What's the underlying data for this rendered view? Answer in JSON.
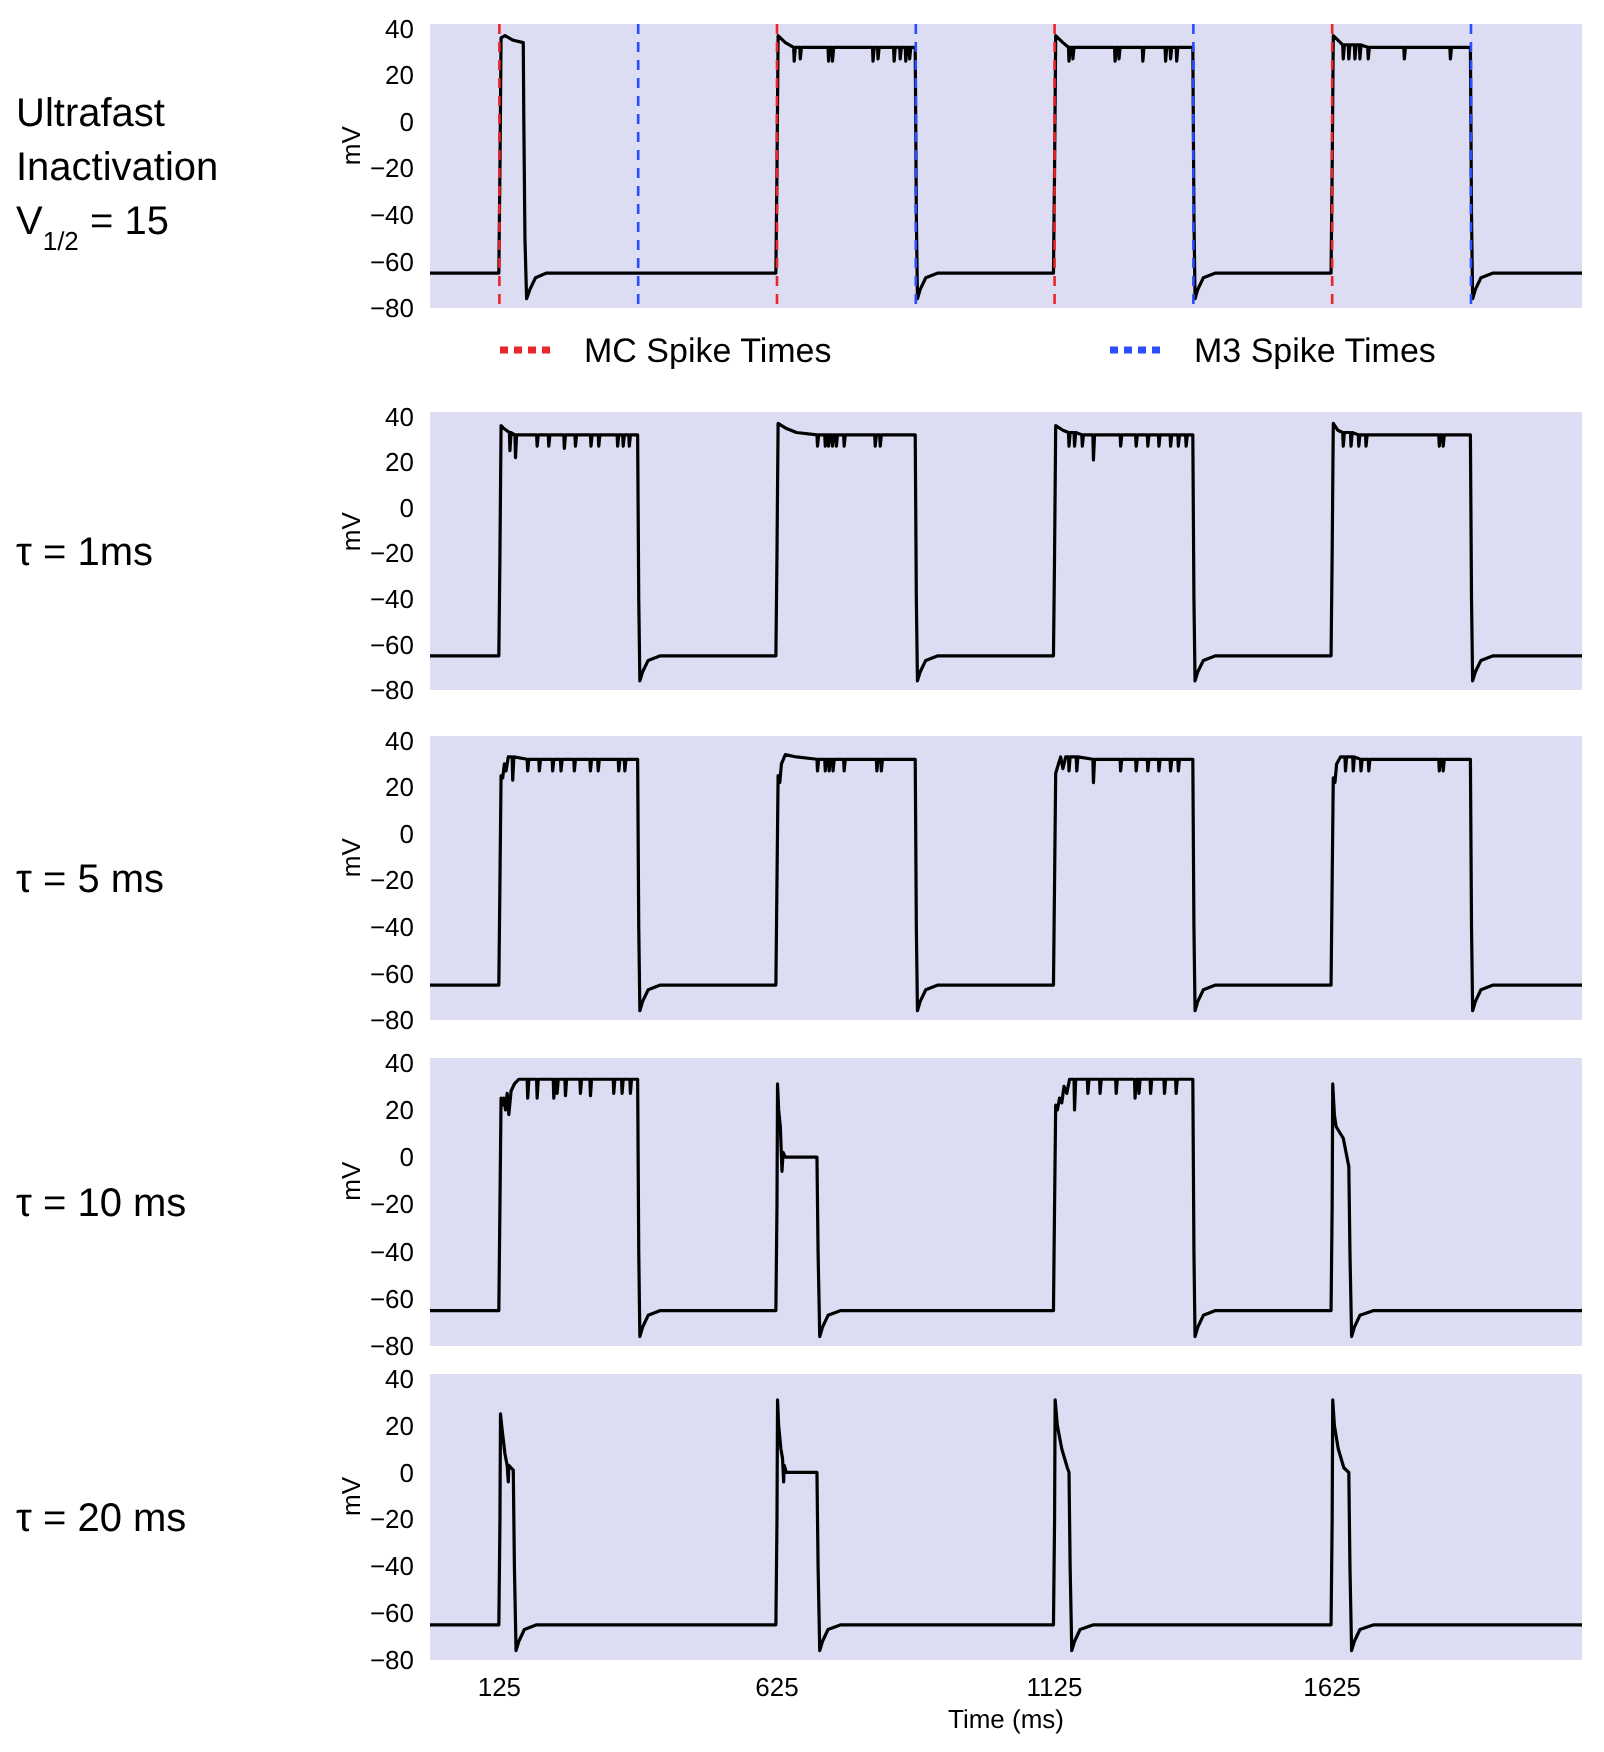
{
  "chart_data": [
    {
      "type": "line",
      "title": "Ultrafast Inactivation V$_{1/2}$ = 15",
      "ylabel": "mV",
      "xlim": [
        0,
        2075
      ],
      "ylim": [
        -80,
        42
      ],
      "yticks": [
        -80,
        -60,
        -40,
        -20,
        0,
        20,
        40
      ],
      "tick_labels": "y",
      "legend": "bottom",
      "grid": false,
      "ref_lines": [
        {
          "axis": "x",
          "value": 125,
          "label": "MC Spike Times",
          "color": "#e8262b",
          "line_style": "dashed"
        },
        {
          "axis": "x",
          "value": 625,
          "color": "#e8262b",
          "line_style": "dashed"
        },
        {
          "axis": "x",
          "value": 1125,
          "color": "#e8262b",
          "line_style": "dashed"
        },
        {
          "axis": "x",
          "value": 1625,
          "color": "#e8262b",
          "line_style": "dashed"
        },
        {
          "axis": "x",
          "value": 375,
          "label": "M3 Spike Times",
          "color": "#2a4dff",
          "line_style": "dashed"
        },
        {
          "axis": "x",
          "value": 875,
          "color": "#2a4dff",
          "line_style": "dashed"
        },
        {
          "axis": "x",
          "value": 1375,
          "color": "#2a4dff",
          "line_style": "dashed"
        },
        {
          "axis": "x",
          "value": 1875,
          "color": "#2a4dff",
          "line_style": "dashed"
        }
      ],
      "series": [
        {
          "color": "#000000",
          "x": [
            0,
            124,
            126,
            128,
            135,
            150,
            168,
            169,
            171,
            174,
            180,
            190,
            210,
            623,
            625,
            627,
            640,
            655,
            656,
            658,
            666,
            667,
            669,
            717,
            718,
            720,
            724,
            725,
            727,
            797,
            798,
            800,
            806,
            807,
            809,
            835,
            836,
            838,
            846,
            847,
            849,
            856,
            857,
            859,
            863,
            864,
            866,
            874,
            876,
            878,
            883,
            893,
            915,
            1123,
            1125,
            1127,
            1140,
            1150,
            1151,
            1153,
            1157,
            1158,
            1160,
            1233,
            1234,
            1236,
            1240,
            1241,
            1243,
            1283,
            1284,
            1286,
            1324,
            1325,
            1327,
            1333,
            1334,
            1336,
            1344,
            1345,
            1347,
            1374,
            1376,
            1378,
            1383,
            1393,
            1415,
            1623,
            1625,
            1627,
            1640,
            1644,
            1645,
            1647,
            1654,
            1655,
            1657,
            1665,
            1666,
            1668,
            1674,
            1675,
            1677,
            1689,
            1690,
            1692,
            1754,
            1755,
            1757,
            1837,
            1838,
            1840,
            1874,
            1876,
            1878,
            1883,
            1893,
            1915,
            2075
          ],
          "values": [
            -65,
            -65,
            -20,
            36,
            37,
            35,
            34,
            0,
            -50,
            -76,
            -72,
            -67,
            -65,
            -65,
            -20,
            37,
            34,
            32,
            26,
            32,
            32,
            27,
            32,
            32,
            26,
            32,
            32,
            26,
            32,
            32,
            26,
            32,
            32,
            27,
            32,
            32,
            26,
            32,
            32,
            27,
            32,
            32,
            26,
            32,
            32,
            27,
            32,
            32,
            -40,
            -76,
            -72,
            -67,
            -65,
            -65,
            -20,
            37,
            34,
            32,
            26,
            32,
            32,
            27,
            32,
            32,
            26,
            32,
            32,
            27,
            32,
            32,
            26,
            32,
            32,
            26,
            32,
            32,
            27,
            32,
            32,
            26,
            32,
            32,
            -40,
            -76,
            -72,
            -67,
            -65,
            -65,
            -20,
            37,
            34,
            33,
            27,
            33,
            33,
            27,
            33,
            33,
            27,
            33,
            33,
            27,
            33,
            32,
            27,
            32,
            32,
            27,
            32,
            32,
            27,
            32,
            32,
            -40,
            -76,
            -72,
            -67,
            -65,
            -65
          ]
        }
      ]
    },
    {
      "type": "line",
      "title": "τ = 1ms",
      "ylabel": "mV",
      "xlim": [
        0,
        2075
      ],
      "ylim": [
        -80,
        42
      ],
      "yticks": [
        -80,
        -60,
        -40,
        -20,
        0,
        20,
        40
      ],
      "tick_labels": "y",
      "grid": false,
      "series": [
        {
          "color": "#000000",
          "x": [
            0,
            124,
            126,
            128,
            132,
            143,
            144,
            146,
            153,
            154,
            156,
            192,
            193,
            195,
            213,
            214,
            216,
            241,
            242,
            244,
            261,
            262,
            264,
            289,
            290,
            292,
            303,
            304,
            306,
            337,
            338,
            340,
            347,
            348,
            350,
            358,
            359,
            361,
            374,
            376,
            378,
            383,
            393,
            415,
            623,
            625,
            627,
            640,
            660,
            697,
            698,
            700,
            711,
            712,
            714,
            717,
            718,
            720,
            724,
            725,
            727,
            731,
            732,
            734,
            745,
            746,
            748,
            801,
            802,
            804,
            810,
            811,
            813,
            874,
            876,
            878,
            883,
            893,
            915,
            1123,
            1125,
            1127,
            1140,
            1150,
            1151,
            1153,
            1160,
            1161,
            1163,
            1174,
            1175,
            1177,
            1194,
            1195,
            1197,
            1243,
            1244,
            1246,
            1271,
            1272,
            1274,
            1292,
            1293,
            1295,
            1312,
            1313,
            1315,
            1333,
            1334,
            1336,
            1347,
            1348,
            1350,
            1361,
            1362,
            1364,
            1374,
            1376,
            1378,
            1383,
            1393,
            1415,
            1623,
            1625,
            1627,
            1635,
            1644,
            1645,
            1647,
            1658,
            1659,
            1661,
            1672,
            1673,
            1675,
            1685,
            1686,
            1688,
            1817,
            1818,
            1820,
            1824,
            1825,
            1827,
            1874,
            1876,
            1878,
            1883,
            1893,
            1915,
            2075
          ],
          "values": [
            -65,
            -65,
            -20,
            36,
            35,
            33,
            25,
            33,
            32,
            22,
            32,
            32,
            27,
            32,
            32,
            27,
            32,
            32,
            26,
            32,
            32,
            27,
            32,
            32,
            27,
            32,
            32,
            27,
            32,
            32,
            27,
            32,
            32,
            27,
            32,
            32,
            27,
            32,
            32,
            -40,
            -76,
            -72,
            -67,
            -65,
            -65,
            -20,
            37,
            35,
            33,
            32,
            27,
            32,
            32,
            27,
            32,
            32,
            27,
            32,
            32,
            27,
            32,
            32,
            27,
            32,
            32,
            27,
            32,
            32,
            27,
            32,
            32,
            27,
            32,
            32,
            -40,
            -76,
            -72,
            -67,
            -65,
            -65,
            -20,
            36,
            34,
            33,
            27,
            33,
            33,
            27,
            33,
            32,
            27,
            32,
            32,
            21,
            32,
            32,
            27,
            32,
            32,
            27,
            32,
            32,
            27,
            32,
            32,
            27,
            32,
            32,
            27,
            32,
            32,
            27,
            32,
            32,
            27,
            32,
            32,
            -40,
            -76,
            -72,
            -67,
            -65,
            -65,
            -20,
            37,
            34,
            33,
            27,
            33,
            33,
            27,
            33,
            32,
            27,
            32,
            32,
            27,
            32,
            32,
            27,
            32,
            32,
            27,
            32,
            32,
            -40,
            -76,
            -72,
            -67,
            -65,
            -65
          ]
        }
      ]
    },
    {
      "type": "line",
      "title": "τ = 5 ms",
      "ylabel": "mV",
      "xlim": [
        0,
        2075
      ],
      "ylim": [
        -80,
        42
      ],
      "yticks": [
        -80,
        -60,
        -40,
        -20,
        0,
        20,
        40
      ],
      "tick_labels": "y",
      "grid": false,
      "series": [
        {
          "color": "#000000",
          "x": [
            0,
            124,
            126,
            128,
            131,
            134,
            137,
            141,
            145,
            148,
            149,
            151,
            175,
            176,
            178,
            196,
            197,
            199,
            220,
            221,
            223,
            235,
            236,
            238,
            259,
            260,
            262,
            288,
            289,
            291,
            302,
            303,
            305,
            339,
            340,
            342,
            350,
            351,
            353,
            374,
            376,
            378,
            383,
            393,
            415,
            623,
            625,
            627,
            630,
            633,
            640,
            660,
            697,
            698,
            700,
            711,
            712,
            714,
            718,
            719,
            721,
            725,
            726,
            728,
            745,
            746,
            748,
            804,
            805,
            807,
            812,
            813,
            815,
            874,
            876,
            878,
            883,
            893,
            915,
            1123,
            1125,
            1127,
            1132,
            1136,
            1140,
            1145,
            1150,
            1151,
            1153,
            1164,
            1165,
            1167,
            1194,
            1195,
            1197,
            1243,
            1244,
            1246,
            1271,
            1272,
            1274,
            1292,
            1293,
            1295,
            1312,
            1313,
            1315,
            1333,
            1334,
            1336,
            1347,
            1348,
            1350,
            1374,
            1376,
            1378,
            1383,
            1393,
            1415,
            1623,
            1625,
            1627,
            1630,
            1633,
            1640,
            1648,
            1649,
            1651,
            1662,
            1663,
            1665,
            1676,
            1677,
            1679,
            1690,
            1691,
            1693,
            1817,
            1818,
            1820,
            1824,
            1825,
            1827,
            1874,
            1876,
            1878,
            1883,
            1893,
            1915,
            2075
          ],
          "values": [
            -65,
            -65,
            -20,
            25,
            24,
            30,
            27,
            33,
            33,
            33,
            23,
            33,
            32,
            27,
            32,
            32,
            27,
            32,
            32,
            27,
            32,
            32,
            27,
            32,
            32,
            27,
            32,
            32,
            27,
            32,
            32,
            27,
            32,
            32,
            27,
            32,
            32,
            27,
            32,
            32,
            -40,
            -76,
            -72,
            -67,
            -65,
            -65,
            -20,
            25,
            22,
            30,
            34,
            33,
            32,
            27,
            32,
            32,
            27,
            32,
            32,
            27,
            32,
            32,
            27,
            32,
            32,
            27,
            32,
            32,
            27,
            32,
            32,
            27,
            32,
            32,
            -40,
            -76,
            -72,
            -67,
            -65,
            -65,
            -20,
            26,
            30,
            33,
            28,
            33,
            33,
            27,
            33,
            33,
            27,
            33,
            32,
            22,
            32,
            32,
            27,
            32,
            32,
            27,
            32,
            32,
            27,
            32,
            32,
            27,
            32,
            32,
            27,
            32,
            32,
            27,
            32,
            32,
            -40,
            -76,
            -72,
            -67,
            -65,
            -65,
            -20,
            24,
            22,
            30,
            33,
            33,
            27,
            33,
            33,
            27,
            33,
            32,
            27,
            32,
            32,
            27,
            32,
            32,
            27,
            32,
            32,
            27,
            32,
            32,
            -40,
            -76,
            -72,
            -67,
            -65,
            -65
          ]
        }
      ]
    },
    {
      "type": "line",
      "title": "τ = 10 ms",
      "ylabel": "mV",
      "xlim": [
        0,
        2075
      ],
      "ylim": [
        -80,
        42
      ],
      "yticks": [
        -80,
        -60,
        -40,
        -20,
        0,
        20,
        40
      ],
      "tick_labels": "y",
      "grid": false,
      "series": [
        {
          "color": "#000000",
          "x": [
            0,
            124,
            126,
            128,
            130,
            133,
            136,
            139,
            142,
            146,
            152,
            160,
            175,
            176,
            178,
            192,
            193,
            195,
            222,
            223,
            225,
            228,
            229,
            231,
            243,
            244,
            246,
            270,
            271,
            273,
            288,
            289,
            291,
            330,
            331,
            333,
            345,
            346,
            348,
            360,
            361,
            363,
            374,
            376,
            378,
            383,
            393,
            415,
            623,
            625,
            626,
            628,
            631,
            634,
            636,
            640,
            697,
            699,
            702,
            707,
            717,
            740,
            1123,
            1125,
            1127,
            1130,
            1134,
            1138,
            1142,
            1147,
            1152,
            1160,
            1161,
            1163,
            1184,
            1185,
            1187,
            1206,
            1207,
            1209,
            1235,
            1236,
            1238,
            1269,
            1270,
            1272,
            1276,
            1277,
            1279,
            1297,
            1298,
            1300,
            1322,
            1323,
            1325,
            1343,
            1344,
            1346,
            1374,
            1376,
            1378,
            1383,
            1393,
            1415,
            1623,
            1625,
            1626,
            1629,
            1632,
            1645,
            1655,
            1657,
            1660,
            1665,
            1675,
            1700,
            2075
          ],
          "values": [
            -65,
            -65,
            -20,
            25,
            22,
            25,
            20,
            27,
            18,
            28,
            31,
            33,
            33,
            25,
            33,
            33,
            25,
            33,
            33,
            25,
            33,
            33,
            27,
            33,
            33,
            26,
            33,
            33,
            27,
            33,
            33,
            26,
            33,
            33,
            27,
            33,
            33,
            27,
            33,
            33,
            27,
            33,
            33,
            -40,
            -76,
            -72,
            -67,
            -65,
            -65,
            -20,
            31,
            20,
            13,
            -6,
            2,
            0,
            0,
            -40,
            -76,
            -72,
            -67,
            -65,
            -65,
            -20,
            22,
            20,
            25,
            23,
            30,
            27,
            33,
            33,
            20,
            33,
            33,
            27,
            33,
            33,
            27,
            33,
            33,
            27,
            33,
            33,
            25,
            33,
            33,
            27,
            33,
            33,
            27,
            33,
            33,
            27,
            33,
            33,
            27,
            33,
            33,
            -40,
            -76,
            -72,
            -67,
            -65,
            -65,
            -20,
            31,
            18,
            13,
            8,
            -4,
            -40,
            -76,
            -72,
            -67,
            -65,
            -65
          ]
        }
      ]
    },
    {
      "type": "line",
      "title": "τ = 20 ms",
      "ylabel": "mV",
      "xlabel": "Time (ms)",
      "xlim": [
        0,
        2075
      ],
      "xticks": [
        125,
        625,
        1125,
        1625
      ],
      "ylim": [
        -80,
        42
      ],
      "yticks": [
        -80,
        -60,
        -40,
        -20,
        0,
        20,
        40
      ],
      "grid": false,
      "series": [
        {
          "color": "#000000",
          "x": [
            0,
            124,
            126,
            127,
            130,
            135,
            139,
            141,
            142,
            146,
            150,
            152,
            155,
            160,
            170,
            192,
            623,
            625,
            626,
            628,
            632,
            635,
            637,
            638,
            642,
            697,
            699,
            702,
            707,
            717,
            740,
            1123,
            1125,
            1126,
            1130,
            1138,
            1148,
            1151,
            1153,
            1156,
            1161,
            1171,
            1195,
            1623,
            1625,
            1626,
            1629,
            1636,
            1646,
            1655,
            1657,
            1660,
            1665,
            1675,
            1700,
            2075
          ],
          "values": [
            -65,
            -65,
            -20,
            25,
            18,
            8,
            3,
            -4,
            3,
            2,
            1,
            -40,
            -76,
            -72,
            -67,
            -65,
            -65,
            -20,
            31,
            20,
            10,
            6,
            -4,
            3,
            0,
            0,
            -40,
            -76,
            -72,
            -67,
            -65,
            -65,
            -20,
            31,
            20,
            10,
            2,
            0,
            -40,
            -76,
            -72,
            -67,
            -65,
            -65,
            -20,
            31,
            20,
            10,
            2,
            0,
            -40,
            -76,
            -72,
            -67,
            -65,
            -65
          ]
        }
      ]
    }
  ]
}
